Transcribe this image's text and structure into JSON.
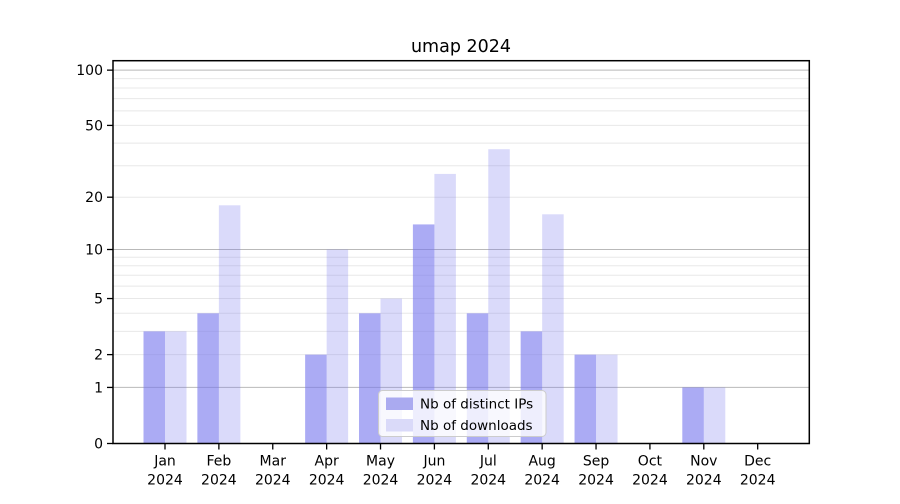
{
  "title": "umap 2024",
  "chart_data": {
    "type": "bar",
    "title": "umap 2024",
    "categories": [
      {
        "label": "Jan",
        "sublabel": "2024"
      },
      {
        "label": "Feb",
        "sublabel": "2024"
      },
      {
        "label": "Mar",
        "sublabel": "2024"
      },
      {
        "label": "Apr",
        "sublabel": "2024"
      },
      {
        "label": "May",
        "sublabel": "2024"
      },
      {
        "label": "Jun",
        "sublabel": "2024"
      },
      {
        "label": "Jul",
        "sublabel": "2024"
      },
      {
        "label": "Aug",
        "sublabel": "2024"
      },
      {
        "label": "Sep",
        "sublabel": "2024"
      },
      {
        "label": "Oct",
        "sublabel": "2024"
      },
      {
        "label": "Nov",
        "sublabel": "2024"
      },
      {
        "label": "Dec",
        "sublabel": "2024"
      }
    ],
    "series": [
      {
        "name": "Nb of distinct IPs",
        "values": [
          3,
          4,
          0,
          2,
          4,
          14,
          4,
          3,
          2,
          0,
          1,
          0
        ],
        "fill": "rgba(119,119,238,0.62)",
        "legend_color": "#aaaaf0"
      },
      {
        "name": "Nb of downloads",
        "values": [
          3,
          18,
          0,
          10,
          5,
          27,
          37,
          16,
          2,
          0,
          1,
          0
        ],
        "fill": "rgba(119,119,238,0.27)",
        "legend_color": "#dadaf9"
      }
    ],
    "yscale": "log1p",
    "ylim": [
      0,
      112
    ],
    "yticks": [
      0,
      1,
      2,
      5,
      10,
      20,
      50,
      100
    ],
    "major_gridlines": [
      1,
      10,
      100
    ],
    "minor_gridlines": [
      2,
      3,
      4,
      5,
      6,
      7,
      8,
      9,
      20,
      30,
      40,
      50,
      60,
      70,
      80,
      90
    ],
    "grid": true,
    "legend_position": "lower center",
    "colors": {
      "bar_dark": "#aaaaf0",
      "bar_light": "#dadaf9",
      "major_grid": "#b9b9b9",
      "minor_grid": "#e8e8e8",
      "axis": "#000000",
      "legend_border": "#cccccc"
    }
  }
}
